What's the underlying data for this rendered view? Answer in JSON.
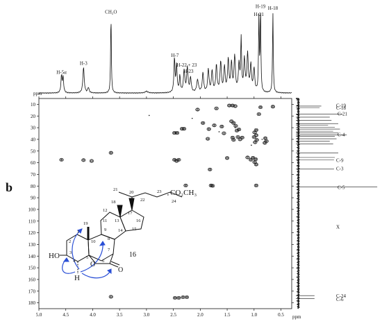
{
  "panel_label": "b",
  "chart_data": {
    "type": "heatmap",
    "subtype": "2D NMR HSQC correlation spectrum with 1H and 13C projections",
    "x_axis": {
      "unit_label": "ppm",
      "range": [
        5.0,
        0.3
      ],
      "reversed": true,
      "ticks": [
        5.0,
        4.5,
        4.0,
        3.5,
        3.0,
        2.5,
        2.0,
        1.5,
        1.0,
        0.5
      ],
      "tick_labels": [
        "5.0",
        "4.5",
        "4.0",
        "3.5",
        "3.0",
        "2.5",
        "2.0",
        "1.5",
        "1.0",
        "0.5"
      ]
    },
    "y_axis": {
      "unit_label": "ppm",
      "range": [
        5,
        185
      ],
      "ticks": [
        10,
        20,
        30,
        40,
        50,
        60,
        70,
        80,
        90,
        100,
        110,
        120,
        130,
        140,
        150,
        160,
        170,
        180
      ],
      "tick_labels": [
        "10",
        "20",
        "30",
        "40",
        "50",
        "60",
        "70",
        "80",
        "90",
        "100",
        "110",
        "120",
        "130",
        "140",
        "150",
        "160",
        "170",
        "180"
      ]
    },
    "h1_projection_labels": [
      {
        "text": "H-5α",
        "x": 4.58,
        "h": 0.2
      },
      {
        "text": "H-3",
        "x": 4.17,
        "h": 0.3
      },
      {
        "text": "CH₂O",
        "x": 3.66,
        "h": 0.88
      },
      {
        "text": "H-7",
        "x": 2.47,
        "h": 0.39
      },
      {
        "text": "H-22 + 23",
        "x": 2.25,
        "h": 0.28
      },
      {
        "text": "H-23",
        "x": 2.22,
        "h": 0.21
      },
      {
        "text": "H-21",
        "x": 0.91,
        "h": 0.85
      },
      {
        "text": "H-19",
        "x": 0.88,
        "h": 0.94
      },
      {
        "text": "H-18",
        "x": 0.65,
        "h": 0.92
      }
    ],
    "h1_peaks": [
      {
        "x": 4.58,
        "h": 0.19,
        "w": 0.012
      },
      {
        "x": 4.55,
        "h": 0.17,
        "w": 0.012
      },
      {
        "x": 4.17,
        "h": 0.29,
        "w": 0.015
      },
      {
        "x": 4.08,
        "h": 0.06,
        "w": 0.015
      },
      {
        "x": 3.66,
        "h": 0.88,
        "w": 0.008
      },
      {
        "x": 3.0,
        "h": 0.02,
        "w": 0.03
      },
      {
        "x": 2.48,
        "h": 0.38,
        "w": 0.012
      },
      {
        "x": 2.44,
        "h": 0.3,
        "w": 0.012
      },
      {
        "x": 2.38,
        "h": 0.18,
        "w": 0.012
      },
      {
        "x": 2.3,
        "h": 0.25,
        "w": 0.015
      },
      {
        "x": 2.24,
        "h": 0.28,
        "w": 0.015
      },
      {
        "x": 2.18,
        "h": 0.16,
        "w": 0.015
      },
      {
        "x": 2.05,
        "h": 0.14,
        "w": 0.02
      },
      {
        "x": 1.95,
        "h": 0.22,
        "w": 0.015
      },
      {
        "x": 1.85,
        "h": 0.26,
        "w": 0.015
      },
      {
        "x": 1.78,
        "h": 0.24,
        "w": 0.015
      },
      {
        "x": 1.7,
        "h": 0.3,
        "w": 0.015
      },
      {
        "x": 1.62,
        "h": 0.34,
        "w": 0.015
      },
      {
        "x": 1.55,
        "h": 0.28,
        "w": 0.015
      },
      {
        "x": 1.48,
        "h": 0.36,
        "w": 0.015
      },
      {
        "x": 1.42,
        "h": 0.32,
        "w": 0.015
      },
      {
        "x": 1.36,
        "h": 0.4,
        "w": 0.015
      },
      {
        "x": 1.28,
        "h": 0.3,
        "w": 0.015
      },
      {
        "x": 1.24,
        "h": 0.58,
        "w": 0.01
      },
      {
        "x": 1.18,
        "h": 0.36,
        "w": 0.015
      },
      {
        "x": 1.12,
        "h": 0.42,
        "w": 0.015
      },
      {
        "x": 1.06,
        "h": 0.3,
        "w": 0.015
      },
      {
        "x": 1.0,
        "h": 0.26,
        "w": 0.015
      },
      {
        "x": 0.91,
        "h": 0.84,
        "w": 0.008
      },
      {
        "x": 0.88,
        "h": 0.93,
        "w": 0.008
      },
      {
        "x": 0.65,
        "h": 0.91,
        "w": 0.008
      }
    ],
    "c13_projection_labels": [
      {
        "text": "C-19",
        "y": 11,
        "h": 0.3
      },
      {
        "text": "C-18",
        "y": 13,
        "h": 0.3
      },
      {
        "text": "C-21",
        "y": 18,
        "h": 0.55
      },
      {
        "text": "C-4",
        "y": 36,
        "h": 0.6
      },
      {
        "text": "C-9",
        "y": 58,
        "h": 0.45
      },
      {
        "text": "C-3",
        "y": 65,
        "h": 0.45
      },
      {
        "text": "C-5",
        "y": 81,
        "h": 0.96
      },
      {
        "text": "X",
        "y": 115,
        "h": 0.22
      },
      {
        "text": "C-24",
        "y": 174,
        "h": 0.22
      },
      {
        "text": "C-6",
        "y": 177,
        "h": 0.22
      }
    ],
    "c13_peaks": [
      {
        "y": 11.5,
        "h": 0.3
      },
      {
        "y": 12.8,
        "h": 0.28
      },
      {
        "y": 18.3,
        "h": 0.55
      },
      {
        "y": 21.0,
        "h": 0.4
      },
      {
        "y": 23.8,
        "h": 0.42
      },
      {
        "y": 26.5,
        "h": 0.5
      },
      {
        "y": 27.8,
        "h": 0.38
      },
      {
        "y": 29.5,
        "h": 0.46
      },
      {
        "y": 31.2,
        "h": 0.52
      },
      {
        "y": 33.0,
        "h": 0.44
      },
      {
        "y": 34.6,
        "h": 0.5
      },
      {
        "y": 36.2,
        "h": 0.6
      },
      {
        "y": 37.5,
        "h": 0.46
      },
      {
        "y": 39.5,
        "h": 0.48
      },
      {
        "y": 41.5,
        "h": 0.4
      },
      {
        "y": 44.0,
        "h": 0.44
      },
      {
        "y": 51.5,
        "h": 0.5
      },
      {
        "y": 55.5,
        "h": 0.46
      },
      {
        "y": 57.5,
        "h": 0.45
      },
      {
        "y": 65.5,
        "h": 0.45
      },
      {
        "y": 80.8,
        "h": 0.96
      },
      {
        "y": 173.8,
        "h": 0.22
      },
      {
        "y": 176.5,
        "h": 0.22
      }
    ],
    "cross_peaks": [
      {
        "x": 4.58,
        "y": 57.5
      },
      {
        "x": 4.17,
        "y": 57.8
      },
      {
        "x": 4.02,
        "y": 58.5
      },
      {
        "x": 3.66,
        "y": 51.5
      },
      {
        "x": 3.66,
        "y": 174.8
      },
      {
        "x": 2.48,
        "y": 34.5
      },
      {
        "x": 2.43,
        "y": 34.5
      },
      {
        "x": 2.34,
        "y": 31.0
      },
      {
        "x": 2.3,
        "y": 31.0
      },
      {
        "x": 2.48,
        "y": 57.5
      },
      {
        "x": 2.44,
        "y": 58.5
      },
      {
        "x": 2.4,
        "y": 57.5
      },
      {
        "x": 2.47,
        "y": 175.8
      },
      {
        "x": 2.4,
        "y": 175.8
      },
      {
        "x": 2.32,
        "y": 175.2
      },
      {
        "x": 2.25,
        "y": 175.2
      },
      {
        "x": 2.27,
        "y": 79.5
      },
      {
        "x": 2.05,
        "y": 14.5
      },
      {
        "x": 1.95,
        "y": 26.0
      },
      {
        "x": 1.86,
        "y": 39.5
      },
      {
        "x": 1.84,
        "y": 31.2
      },
      {
        "x": 1.82,
        "y": 65.8
      },
      {
        "x": 1.8,
        "y": 79.5
      },
      {
        "x": 1.77,
        "y": 79.8
      },
      {
        "x": 1.74,
        "y": 28.0
      },
      {
        "x": 1.7,
        "y": 13.5
      },
      {
        "x": 1.6,
        "y": 29.0
      },
      {
        "x": 1.56,
        "y": 34.8
      },
      {
        "x": 1.5,
        "y": 56.0
      },
      {
        "x": 1.46,
        "y": 11.0
      },
      {
        "x": 1.4,
        "y": 11.0
      },
      {
        "x": 1.35,
        "y": 11.5
      },
      {
        "x": 1.42,
        "y": 24.5
      },
      {
        "x": 1.38,
        "y": 26.0
      },
      {
        "x": 1.34,
        "y": 28.5
      },
      {
        "x": 1.32,
        "y": 32.5
      },
      {
        "x": 1.28,
        "y": 31.5
      },
      {
        "x": 1.4,
        "y": 38.5
      },
      {
        "x": 1.38,
        "y": 40.5
      },
      {
        "x": 1.3,
        "y": 38.0
      },
      {
        "x": 1.26,
        "y": 40.0
      },
      {
        "x": 1.22,
        "y": 38.5
      },
      {
        "x": 1.12,
        "y": 55.5
      },
      {
        "x": 1.06,
        "y": 57.5
      },
      {
        "x": 1.02,
        "y": 55.8
      },
      {
        "x": 0.96,
        "y": 32.0
      },
      {
        "x": 0.99,
        "y": 34.0
      },
      {
        "x": 0.96,
        "y": 36.5
      },
      {
        "x": 1.0,
        "y": 38.0
      },
      {
        "x": 0.95,
        "y": 40.5
      },
      {
        "x": 0.98,
        "y": 42.5
      },
      {
        "x": 0.97,
        "y": 57.0
      },
      {
        "x": 0.99,
        "y": 59.5
      },
      {
        "x": 0.96,
        "y": 61.5
      },
      {
        "x": 0.96,
        "y": 79.5
      },
      {
        "x": 0.91,
        "y": 18.4
      },
      {
        "x": 0.88,
        "y": 12.5
      },
      {
        "x": 0.79,
        "y": 39.0
      },
      {
        "x": 0.77,
        "y": 41.5
      },
      {
        "x": 0.8,
        "y": 43.0
      },
      {
        "x": 0.65,
        "y": 12.0
      }
    ],
    "artifact_points": [
      {
        "x": 2.95,
        "y": 19.5
      },
      {
        "x": 2.6,
        "y": 87.5
      },
      {
        "x": 2.15,
        "y": 22.0
      },
      {
        "x": 1.65,
        "y": 33.5
      },
      {
        "x": 1.35,
        "y": 30.0
      },
      {
        "x": 1.05,
        "y": 45.0
      },
      {
        "x": 0.85,
        "y": 40.0
      }
    ],
    "structure_labels": {
      "c21": "21",
      "c20": "20",
      "c22": "22",
      "c23": "23",
      "c24": "24",
      "ester_group": "CO₂CH₃",
      "c18": "18",
      "c17": "17",
      "c16": "16",
      "c15": "15",
      "c14": "14",
      "c13": "13",
      "c12": "12",
      "c11": "11",
      "c19": "19",
      "c9": "9",
      "c10": "10",
      "c1": "1",
      "c2": "2",
      "c3": "3",
      "c4": "4",
      "c5": "5",
      "c6": "6",
      "c7": "7",
      "c8": "8",
      "ho": "HO",
      "o_ring": "O",
      "o_carbonyl": "O",
      "h5": "H",
      "compound_number": "16"
    }
  }
}
